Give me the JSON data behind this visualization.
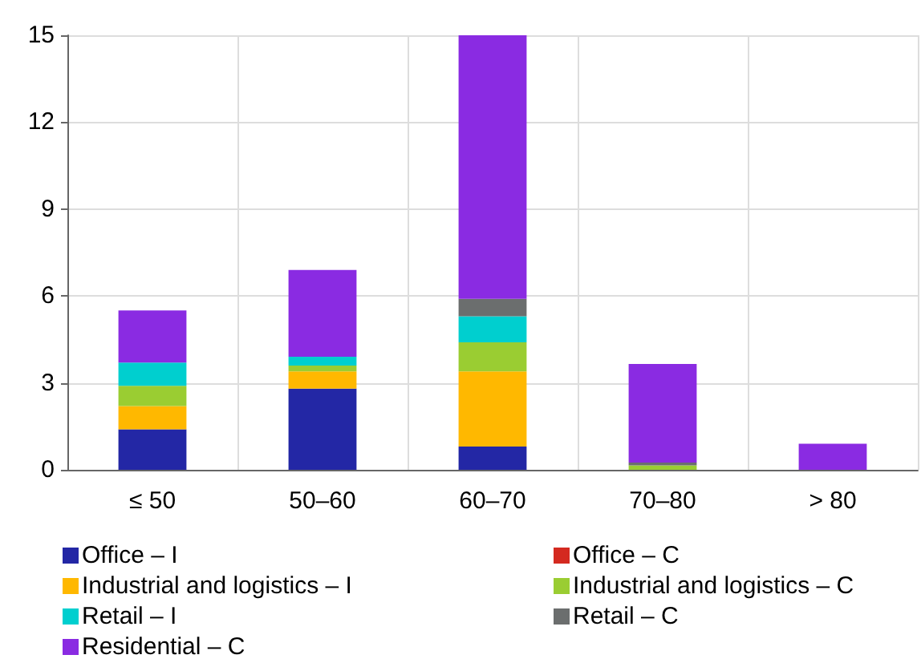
{
  "chart_data": {
    "type": "bar",
    "stacked": true,
    "categories": [
      "≤ 50",
      "50–60",
      "60–70",
      "70–80",
      "> 80"
    ],
    "ylim": [
      0,
      15
    ],
    "yticks": [
      0,
      3,
      6,
      9,
      12,
      15
    ],
    "grid": true,
    "legend": "bottom",
    "series": [
      {
        "name": "Office – I",
        "color": "#2327a5",
        "values": [
          1.4,
          2.8,
          0.8,
          0,
          0
        ]
      },
      {
        "name": "Office – C",
        "color": "#d42a20",
        "values": [
          0,
          0,
          0,
          0,
          0
        ]
      },
      {
        "name": "Industrial and logistics – I",
        "color": "#ffb800",
        "values": [
          0.8,
          0.6,
          2.6,
          0,
          0
        ]
      },
      {
        "name": "Industrial and logistics – C",
        "color": "#9acd32",
        "values": [
          0.7,
          0.2,
          1.0,
          0.15,
          0
        ]
      },
      {
        "name": "Retail – I",
        "color": "#00cfcf",
        "values": [
          0.8,
          0.3,
          0.9,
          0,
          0
        ]
      },
      {
        "name": "Retail – C",
        "color": "#6b6e6e",
        "values": [
          0,
          0,
          0.6,
          0.1,
          0
        ]
      },
      {
        "name": "Residential – C",
        "color": "#8a2be2",
        "values": [
          1.8,
          3.0,
          9.1,
          3.4,
          0.9
        ]
      }
    ]
  }
}
